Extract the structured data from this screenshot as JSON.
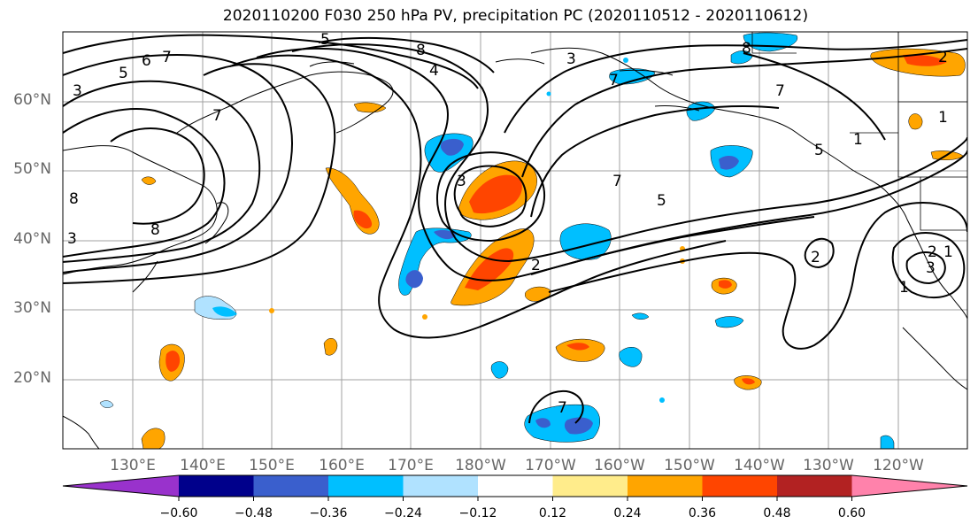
{
  "title": "2020110200 F030 250 hPa PV, precipitation PC (2020110512 - 2020110612)",
  "lat_labels": [
    "60°N",
    "50°N",
    "40°N",
    "30°N",
    "20°N"
  ],
  "lon_labels": [
    "130°E",
    "140°E",
    "150°E",
    "160°E",
    "170°E",
    "180°W",
    "170°W",
    "160°W",
    "150°W",
    "140°W",
    "130°W",
    "120°W"
  ],
  "colorbar": {
    "levels": [
      "−0.60",
      "−0.48",
      "−0.36",
      "−0.24",
      "−0.12",
      "0.12",
      "0.24",
      "0.36",
      "0.48",
      "0.60"
    ],
    "colors": [
      "#9932cc",
      "#00008b",
      "#3a5fcd",
      "#00bfff",
      "#b0e2ff",
      "#ffffff",
      "#ffec8b",
      "#ffa500",
      "#ff4500",
      "#b22222",
      "#ff82ab"
    ]
  },
  "contour_labels": [
    "5",
    "6",
    "7",
    "5",
    "8",
    "7",
    "3",
    "4",
    "3",
    "8",
    "7",
    "3",
    "7",
    "5",
    "7",
    "8",
    "8",
    "3",
    "2",
    "2",
    "7",
    "5",
    "1",
    "1",
    "1",
    "2",
    "3",
    "2",
    "1"
  ]
}
